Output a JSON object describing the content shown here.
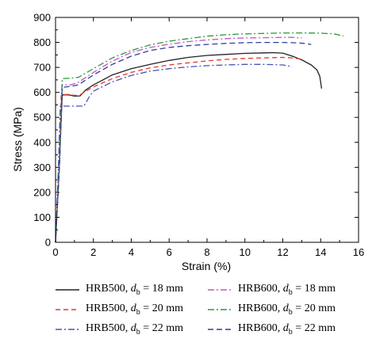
{
  "chart_data": {
    "type": "line",
    "xlabel": "Strain (%)",
    "ylabel": "Stress (MPa)",
    "xlim": [
      0,
      16
    ],
    "ylim": [
      0,
      900
    ],
    "xticks": [
      0,
      2,
      4,
      6,
      8,
      10,
      12,
      14,
      16
    ],
    "yticks": [
      0,
      100,
      200,
      300,
      400,
      500,
      600,
      700,
      800,
      900
    ],
    "grid": false,
    "legend_position": "bottom",
    "series": [
      {
        "name": "HRB500, db = 18 mm",
        "legend": {
          "main": "HRB500, ",
          "var": "d",
          "sub": "b",
          "rest": " = 18 mm"
        },
        "color": "#222222",
        "dash": "solid",
        "points": [
          [
            0,
            0
          ],
          [
            0.2,
            300
          ],
          [
            0.35,
            590
          ],
          [
            0.7,
            590
          ],
          [
            1.0,
            585
          ],
          [
            1.3,
            586
          ],
          [
            1.6,
            610
          ],
          [
            2.0,
            630
          ],
          [
            3.0,
            670
          ],
          [
            4.0,
            695
          ],
          [
            5.0,
            712
          ],
          [
            6.0,
            728
          ],
          [
            7.0,
            740
          ],
          [
            8.0,
            748
          ],
          [
            9.0,
            752
          ],
          [
            10.0,
            756
          ],
          [
            11.0,
            758
          ],
          [
            11.5,
            759
          ],
          [
            12.0,
            757
          ],
          [
            12.5,
            745
          ],
          [
            13.0,
            730
          ],
          [
            13.5,
            710
          ],
          [
            13.8,
            690
          ],
          [
            13.95,
            665
          ],
          [
            14.0,
            640
          ],
          [
            14.05,
            615
          ]
        ]
      },
      {
        "name": "HRB500, db = 20 mm",
        "legend": {
          "main": "HRB500, ",
          "var": "d",
          "sub": "b",
          "rest": " = 20 mm"
        },
        "color": "#e03a2a",
        "dash": "6,4",
        "points": [
          [
            0,
            0
          ],
          [
            0.2,
            300
          ],
          [
            0.3,
            590
          ],
          [
            0.7,
            592
          ],
          [
            1.0,
            588
          ],
          [
            1.3,
            590
          ],
          [
            1.6,
            605
          ],
          [
            2.0,
            622
          ],
          [
            3.0,
            655
          ],
          [
            4.0,
            680
          ],
          [
            5.0,
            698
          ],
          [
            6.0,
            710
          ],
          [
            7.0,
            718
          ],
          [
            8.0,
            726
          ],
          [
            9.0,
            732
          ],
          [
            10.0,
            736
          ],
          [
            11.0,
            738
          ],
          [
            12.0,
            740
          ],
          [
            12.5,
            738
          ],
          [
            13.0,
            733
          ]
        ]
      },
      {
        "name": "HRB500, db = 22 mm",
        "legend": {
          "main": "HRB500, ",
          "var": "d",
          "sub": "b",
          "rest": " = 22 mm"
        },
        "color": "#4a52b8",
        "dash": "8,3,2,3",
        "points": [
          [
            0,
            0
          ],
          [
            0.15,
            300
          ],
          [
            0.25,
            545
          ],
          [
            0.6,
            545
          ],
          [
            1.0,
            545
          ],
          [
            1.5,
            545
          ],
          [
            1.8,
            585
          ],
          [
            2.0,
            605
          ],
          [
            3.0,
            642
          ],
          [
            4.0,
            668
          ],
          [
            5.0,
            685
          ],
          [
            6.0,
            695
          ],
          [
            7.0,
            702
          ],
          [
            8.0,
            707
          ],
          [
            9.0,
            710
          ],
          [
            10.0,
            712
          ],
          [
            11.0,
            712
          ],
          [
            11.5,
            711
          ],
          [
            12.0,
            710
          ],
          [
            12.5,
            703
          ]
        ]
      },
      {
        "name": "HRB600, db = 18 mm",
        "legend": {
          "main": "HRB600, ",
          "var": "d",
          "sub": "b",
          "rest": " = 18 mm"
        },
        "color": "#c257c7",
        "dash": "8,3,2,3",
        "points": [
          [
            0,
            0
          ],
          [
            0.2,
            300
          ],
          [
            0.35,
            630
          ],
          [
            0.8,
            630
          ],
          [
            1.2,
            640
          ],
          [
            2.0,
            680
          ],
          [
            3.0,
            725
          ],
          [
            4.0,
            760
          ],
          [
            5.0,
            780
          ],
          [
            6.0,
            793
          ],
          [
            7.0,
            803
          ],
          [
            8.0,
            810
          ],
          [
            9.0,
            815
          ],
          [
            10.0,
            818
          ],
          [
            11.0,
            819
          ],
          [
            12.0,
            820
          ],
          [
            12.5,
            820
          ],
          [
            13.0,
            818
          ]
        ]
      },
      {
        "name": "HRB600, db = 20 mm",
        "legend": {
          "main": "HRB600, ",
          "var": "d",
          "sub": "b",
          "rest": " = 20 mm"
        },
        "color": "#2f9a3b",
        "dash": "8,3,2,3",
        "points": [
          [
            0,
            0
          ],
          [
            0.2,
            300
          ],
          [
            0.35,
            655
          ],
          [
            0.8,
            657
          ],
          [
            1.2,
            660
          ],
          [
            2.0,
            695
          ],
          [
            3.0,
            738
          ],
          [
            4.0,
            768
          ],
          [
            5.0,
            790
          ],
          [
            6.0,
            805
          ],
          [
            7.0,
            815
          ],
          [
            8.0,
            825
          ],
          [
            9.0,
            831
          ],
          [
            10.0,
            834
          ],
          [
            11.0,
            836
          ],
          [
            12.0,
            838
          ],
          [
            13.0,
            838
          ],
          [
            14.0,
            837
          ],
          [
            14.7,
            834
          ],
          [
            15.2,
            826
          ]
        ]
      },
      {
        "name": "HRB600, db = 22 mm",
        "legend": {
          "main": "HRB600, ",
          "var": "d",
          "sub": "b",
          "rest": " = 22 mm"
        },
        "color": "#2f3f9a",
        "dash": "7,4",
        "points": [
          [
            0,
            0
          ],
          [
            0.2,
            300
          ],
          [
            0.35,
            620
          ],
          [
            0.8,
            624
          ],
          [
            1.2,
            630
          ],
          [
            2.0,
            670
          ],
          [
            3.0,
            712
          ],
          [
            4.0,
            745
          ],
          [
            5.0,
            768
          ],
          [
            6.0,
            780
          ],
          [
            7.0,
            787
          ],
          [
            8.0,
            792
          ],
          [
            9.0,
            796
          ],
          [
            10.0,
            799
          ],
          [
            11.0,
            800
          ],
          [
            12.0,
            800
          ],
          [
            12.5,
            799
          ],
          [
            13.0,
            797
          ],
          [
            13.5,
            792
          ]
        ]
      }
    ]
  }
}
